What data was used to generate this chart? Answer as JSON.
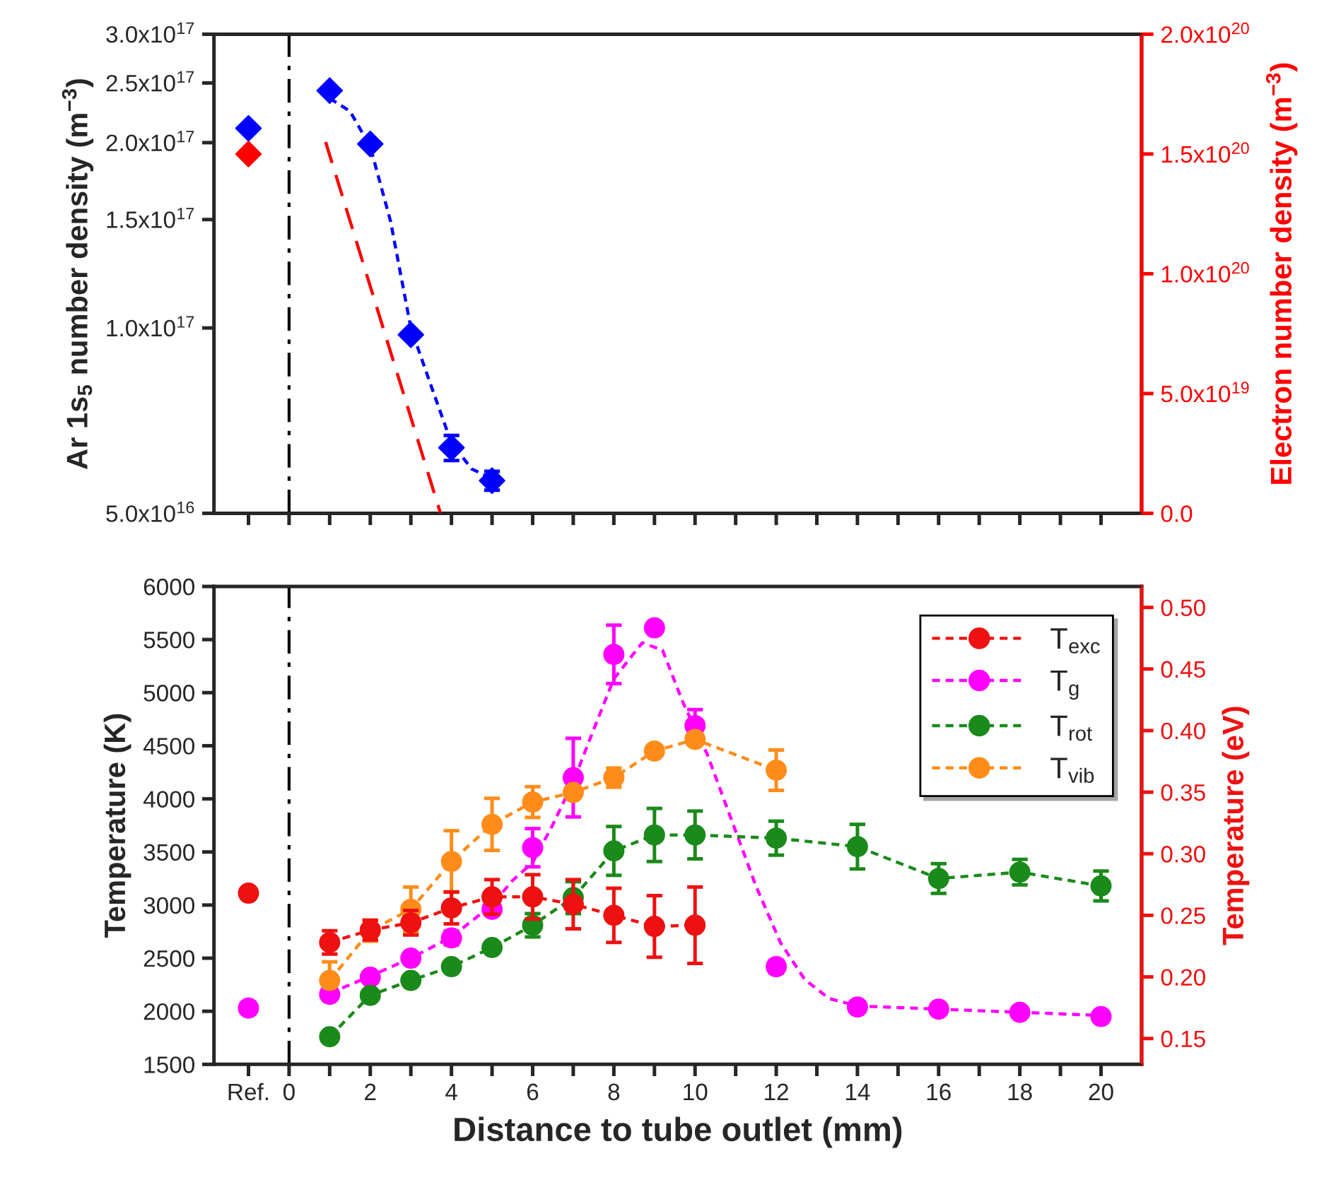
{
  "chart_data": [
    {
      "type": "scatter",
      "log": "y",
      "tick_labels": "y",
      "xlim": [
        -1.85,
        21
      ],
      "xticks": [
        {
          "value": -1,
          "label": null
        },
        {
          "value": 0,
          "label": null
        },
        {
          "value": 1,
          "label": null
        },
        {
          "value": 2,
          "label": null
        },
        {
          "value": 3,
          "label": null
        },
        {
          "value": 4,
          "label": null
        },
        {
          "value": 5,
          "label": null
        },
        {
          "value": 6,
          "label": null
        },
        {
          "value": 7,
          "label": null
        },
        {
          "value": 8,
          "label": null
        },
        {
          "value": 9,
          "label": null
        },
        {
          "value": 10,
          "label": null
        },
        {
          "value": 11,
          "label": null
        },
        {
          "value": 12,
          "label": null
        },
        {
          "value": 13,
          "label": null
        },
        {
          "value": 14,
          "label": null
        },
        {
          "value": 15,
          "label": null
        },
        {
          "value": 16,
          "label": null
        },
        {
          "value": 17,
          "label": null
        },
        {
          "value": 18,
          "label": null
        },
        {
          "value": 19,
          "label": null
        },
        {
          "value": 20,
          "label": null
        }
      ],
      "ylim": [
        5e+16,
        3e+17
      ],
      "yticks": [
        {
          "value": 5e+16,
          "label": "5.0x10$^{16}$"
        },
        {
          "value": 1e+17,
          "label": "1.0x10$^{17}$"
        },
        {
          "value": 1.5e+17,
          "label": "1.5x10$^{17}$"
        },
        {
          "value": 2e+17,
          "label": "2.0x10$^{17}$"
        },
        {
          "value": 2.5e+17,
          "label": "2.5x10$^{17}$"
        },
        {
          "value": 3e+17,
          "label": "3.0x10$^{17}$"
        }
      ],
      "y2lim": [
        0,
        2e+20
      ],
      "y2ticks": [
        {
          "value": 0,
          "label": "0.0"
        },
        {
          "value": 5e+19,
          "label": "5.0x10$^{19}$"
        },
        {
          "value": 1e+20,
          "label": "1.0x10$^{20}$"
        },
        {
          "value": 1.5e+20,
          "label": "1.5x10$^{20}$"
        },
        {
          "value": 2e+20,
          "label": "2.0x10$^{20}$"
        }
      ],
      "ylabel": "Ar 1s$_{5}$ number density (m$^{−3}$)",
      "y2label": "Electron number density (m$^{−3}$)",
      "ref_lines": [
        {
          "axis": "x",
          "value": 0,
          "color": "#000000",
          "line_style": "dashdot"
        }
      ],
      "series": [
        {
          "color": "#0000ff",
          "marker": "diamond",
          "x": [
            -1,
            1,
            2,
            3,
            4,
            5
          ],
          "values": [
            2.11e+17,
            2.43e+17,
            1.99e+17,
            9.75e+16,
            6.39e+16,
            5.65e+16
          ],
          "errors": [
            null,
            null,
            null,
            null,
            3000000000000000.0,
            2000000000000000.0
          ]
        },
        {
          "type": "line",
          "color": "#0000ff",
          "line_style": "dotted",
          "x": [
            1,
            1.5,
            2,
            2.5,
            3,
            3.5,
            4,
            4.5,
            5
          ],
          "values": [
            2.36e+17,
            2.25e+17,
            1.97e+17,
            1.49e+17,
            1e+17,
            8.05e+16,
            6.5e+16,
            5.9e+16,
            5.7e+16
          ]
        },
        {
          "axis": "y2",
          "color": "#ff0000",
          "marker": "diamond",
          "x": [
            -1
          ],
          "values": [
            1.5e+20
          ]
        },
        {
          "type": "line",
          "axis": "y2",
          "color": "#ff0000",
          "line_style": "dashed",
          "x": [
            0.9,
            3.73
          ],
          "values": [
            1.55e+20,
            0
          ]
        }
      ]
    },
    {
      "type": "line",
      "legend": "top right",
      "xlim": [
        -1.85,
        21
      ],
      "xticks": [
        {
          "value": -1,
          "label": "Ref."
        },
        0,
        {
          "value": 1,
          "label": null
        },
        2,
        {
          "value": 3,
          "label": null
        },
        4,
        {
          "value": 5,
          "label": null
        },
        6,
        {
          "value": 7,
          "label": null
        },
        8,
        {
          "value": 9,
          "label": null
        },
        10,
        {
          "value": 11,
          "label": null
        },
        12,
        {
          "value": 13,
          "label": null
        },
        14,
        {
          "value": 15,
          "label": null
        },
        16,
        {
          "value": 17,
          "label": null
        },
        18,
        {
          "value": 19,
          "label": null
        },
        20
      ],
      "ylim": [
        1500,
        6000
      ],
      "yticks": [
        1500,
        2000,
        2500,
        3000,
        3500,
        4000,
        4500,
        5000,
        5500,
        6000
      ],
      "y2lim": [
        0.129,
        0.517
      ],
      "y2ticks": [
        0.15,
        {
          "value": 0.2,
          "label": "0.20"
        },
        0.25,
        {
          "value": 0.3,
          "label": "0.30"
        },
        0.35,
        {
          "value": 0.4,
          "label": "0.40"
        },
        0.45,
        {
          "value": 0.5,
          "label": "0.50"
        }
      ],
      "xlabel": "Distance to tube outlet (mm)",
      "ylabel": "Temperature (K)",
      "y2label": "Temperature (eV)",
      "ref_lines": [
        {
          "axis": "x",
          "value": 0,
          "color": "#000000",
          "line_style": "dashdot"
        }
      ],
      "series": [
        {
          "type": "scatter",
          "axis": "y2",
          "color": "#ee1111",
          "marker": "circle",
          "x": [
            -1
          ],
          "values": [
            0.268
          ]
        },
        {
          "axis": "y2",
          "name": "T$_{exc}$",
          "color": "#ee1111",
          "marker": "circle",
          "line_style": "dotted",
          "x": [
            1,
            2,
            3,
            4,
            5,
            6,
            7,
            8,
            9,
            10
          ],
          "values": [
            0.228,
            0.238,
            0.244,
            0.256,
            0.265,
            0.265,
            0.259,
            0.25,
            0.241,
            0.242
          ],
          "errors": [
            0.0095,
            0.008,
            0.01,
            0.013,
            0.014,
            0.018,
            0.02,
            0.022,
            0.025,
            0.031
          ]
        },
        {
          "type": "scatter",
          "color": "#ff00ff",
          "marker": "circle",
          "x": [
            -1
          ],
          "values": [
            2030
          ]
        },
        {
          "type": "scatter",
          "name": "T$_{g}$",
          "color": "#ff00ff",
          "marker": "circle",
          "line_style": "dotted",
          "x": [
            1,
            2,
            3,
            4,
            5,
            6,
            7,
            8,
            9,
            10,
            12,
            14,
            16,
            18,
            20
          ],
          "values": [
            2160,
            2320,
            2500,
            2690,
            2960,
            3540,
            4200,
            5360,
            5610,
            4690,
            2420,
            2040,
            2020,
            1990,
            1950
          ],
          "errors": [
            null,
            null,
            null,
            65,
            null,
            180,
            370,
            275,
            null,
            150,
            60,
            null,
            null,
            null,
            null
          ]
        },
        {
          "color": "#ff00ff",
          "line_style": "dotted",
          "x": [
            1,
            2,
            3,
            4,
            5,
            5.5,
            6,
            6.5,
            7,
            7.5,
            8,
            8.7,
            9.2,
            9.7,
            10.3,
            10.9,
            11.5,
            12.1,
            12.7,
            13.3,
            14,
            16,
            18,
            20
          ],
          "values": [
            2170,
            2330,
            2500,
            2700,
            3000,
            3230,
            3400,
            3760,
            4160,
            4650,
            5130,
            5470,
            5400,
            4910,
            4420,
            3800,
            3180,
            2650,
            2300,
            2120,
            2050,
            2020,
            1990,
            1960
          ]
        },
        {
          "name": "T$_{rot}$",
          "color": "#1a8a1a",
          "marker": "circle",
          "line_style": "dotted",
          "x": [
            1,
            2,
            3,
            4,
            5,
            6,
            7,
            8,
            9,
            10,
            12,
            14,
            16,
            18,
            20
          ],
          "values": [
            1760,
            2150,
            2290,
            2420,
            2600,
            2810,
            3070,
            3510,
            3660,
            3660,
            3630,
            3550,
            3250,
            3310,
            3180
          ],
          "errors": [
            null,
            null,
            null,
            null,
            null,
            110,
            150,
            230,
            250,
            225,
            160,
            210,
            140,
            120,
            140
          ]
        },
        {
          "name": "T$_{vib}$",
          "color": "#ff8c1a",
          "marker": "circle",
          "line_style": "dotted",
          "x": [
            1,
            2,
            3,
            4,
            5,
            6,
            7,
            8,
            9,
            10,
            12
          ],
          "values": [
            2290,
            2760,
            2960,
            3410,
            3760,
            3970,
            4060,
            4200,
            4450,
            4560,
            4270
          ],
          "errors": [
            175,
            100,
            210,
            290,
            245,
            145,
            null,
            90,
            null,
            null,
            190
          ]
        }
      ]
    }
  ]
}
